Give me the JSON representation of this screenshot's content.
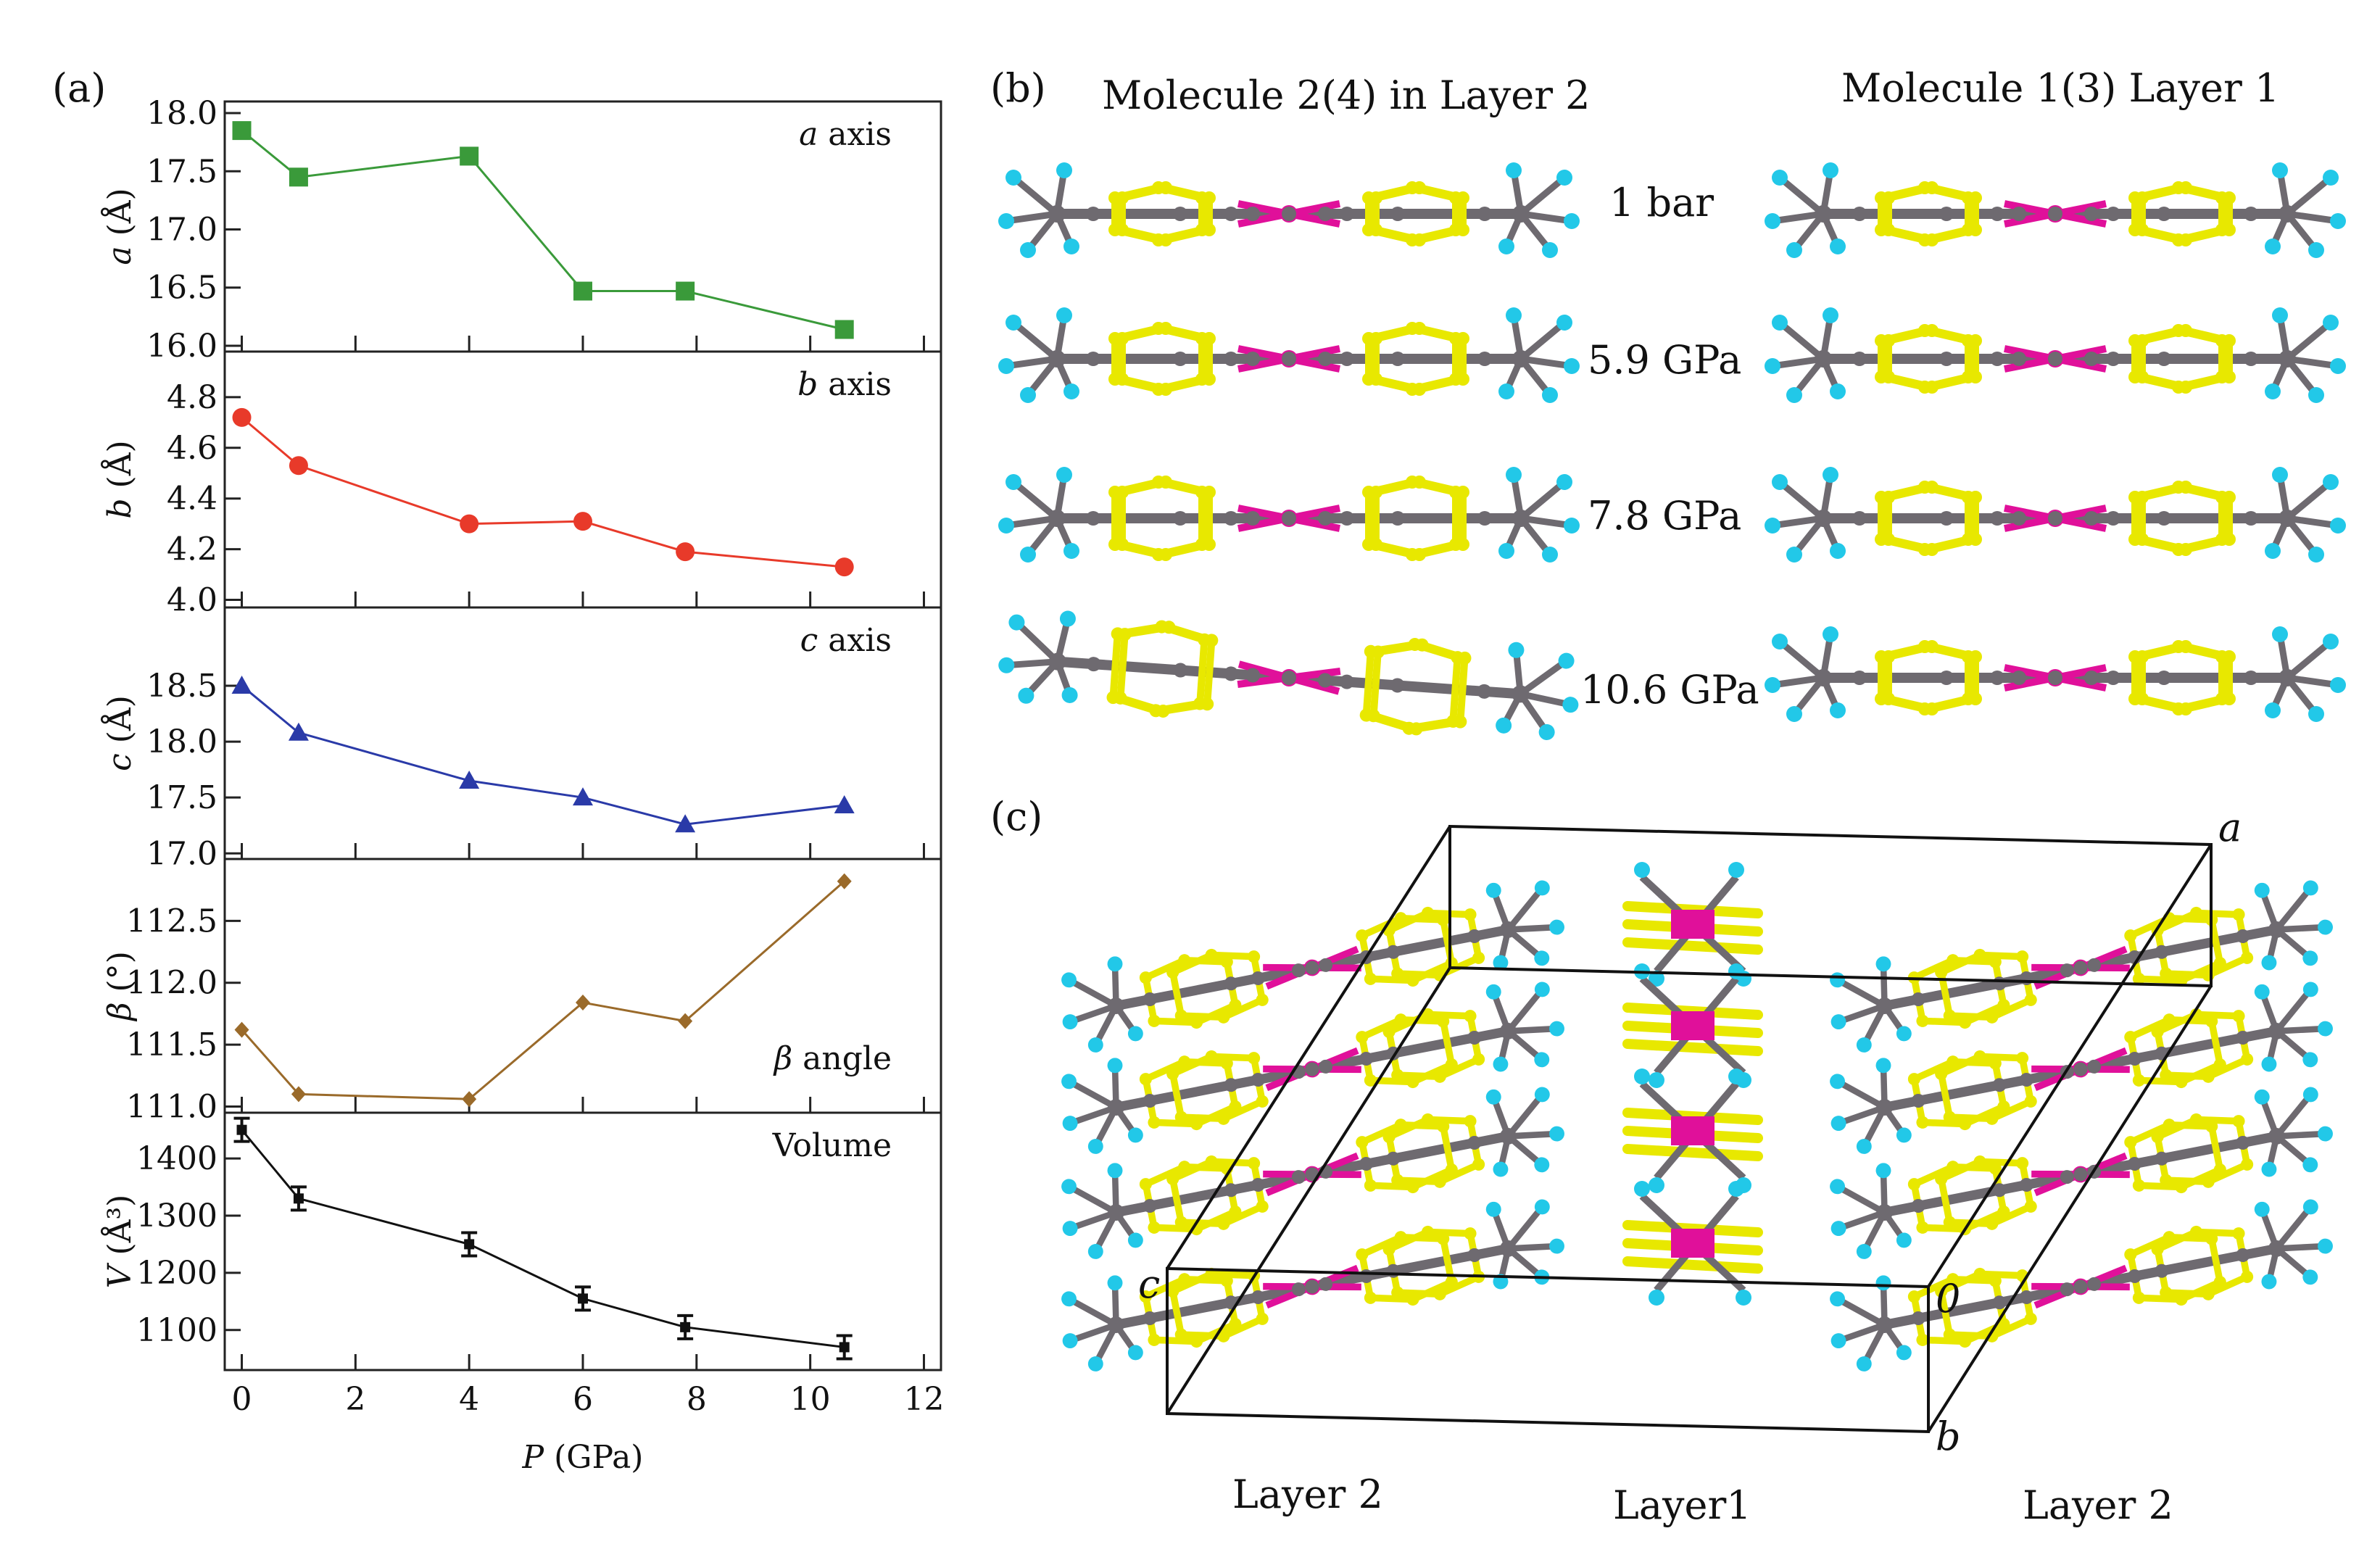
{
  "panel_labels": {
    "a": "(a)",
    "b": "(b)",
    "c": "(c)"
  },
  "colors": {
    "a_series": "#3a9a3a",
    "b_series": "#e83a2a",
    "c_series": "#2a3aa8",
    "beta_series": "#9a6a2a",
    "volume_series": "#111111",
    "carbon": "#6e6a70",
    "sulfur": "#e8e800",
    "metal": "#e0109a",
    "hydrogen": "#22c8e8"
  },
  "chart_data": {
    "type": "line",
    "xlabel": "P (GPa)",
    "xlabel_italic": "P",
    "xlabel_rest": " (GPa)",
    "xlim": [
      -0.3,
      12.3
    ],
    "xticks": [
      "0",
      "2",
      "4",
      "6",
      "8",
      "10",
      "12"
    ],
    "x": [
      0,
      1,
      4,
      6,
      7.8,
      10.6
    ],
    "series": [
      {
        "name": "a axis",
        "name_italic": "a",
        "name_rest": " axis",
        "ylabel_italic": "a",
        "ylabel_rest": " (Å)",
        "values": [
          17.85,
          17.45,
          17.63,
          16.47,
          16.47,
          16.14
        ],
        "ylim": [
          15.95,
          18.1
        ],
        "yticks": [
          "16.0",
          "16.5",
          "17.0",
          "17.5",
          "18.0"
        ],
        "marker": "square"
      },
      {
        "name": "b axis",
        "name_italic": "b",
        "name_rest": " axis",
        "ylabel_italic": "b",
        "ylabel_rest": " (Å)",
        "values": [
          4.72,
          4.53,
          4.3,
          4.31,
          4.19,
          4.13
        ],
        "ylim": [
          3.97,
          4.98
        ],
        "yticks": [
          "4.0",
          "4.2",
          "4.4",
          "4.6",
          "4.8"
        ],
        "marker": "circle"
      },
      {
        "name": "c axis",
        "name_italic": "c",
        "name_rest": " axis",
        "ylabel_italic": "c",
        "ylabel_rest": " (Å)",
        "values": [
          18.5,
          18.08,
          17.65,
          17.5,
          17.26,
          17.43
        ],
        "ylim": [
          16.95,
          19.2
        ],
        "yticks": [
          "17.0",
          "17.5",
          "18.0",
          "18.5"
        ],
        "marker": "triangle"
      },
      {
        "name": "β angle",
        "name_italic": "β",
        "name_rest": " angle",
        "ylabel_italic": "β",
        "ylabel_rest": " (°)",
        "values": [
          111.62,
          111.1,
          111.06,
          111.84,
          111.69,
          112.82
        ],
        "ylim": [
          110.95,
          113.0
        ],
        "yticks": [
          "111.0",
          "111.5",
          "112.0",
          "112.5"
        ],
        "marker": "diamond"
      },
      {
        "name": "Volume",
        "name_italic": "",
        "name_rest": "Volume",
        "ylabel_italic": "V",
        "ylabel_rest": " (Å³)",
        "values": [
          1450,
          1330,
          1250,
          1155,
          1105,
          1070
        ],
        "ylim": [
          1030,
          1480
        ],
        "yticks": [
          "1100",
          "1200",
          "1300",
          "1400"
        ],
        "marker": "errorbar"
      }
    ]
  },
  "panel_b": {
    "title_left": "Molecule 2(4) in Layer 2",
    "title_right": "Molecule 1(3)  Layer 1",
    "pressures": [
      "1 bar",
      "5.9 GPa",
      "7.8 GPa",
      "10.6 GPa"
    ]
  },
  "panel_c": {
    "axis_a": "a",
    "axis_b": "b",
    "axis_c": "c",
    "origin": "0",
    "layer_labels": [
      "Layer 2",
      "Layer1",
      "Layer 2"
    ]
  }
}
